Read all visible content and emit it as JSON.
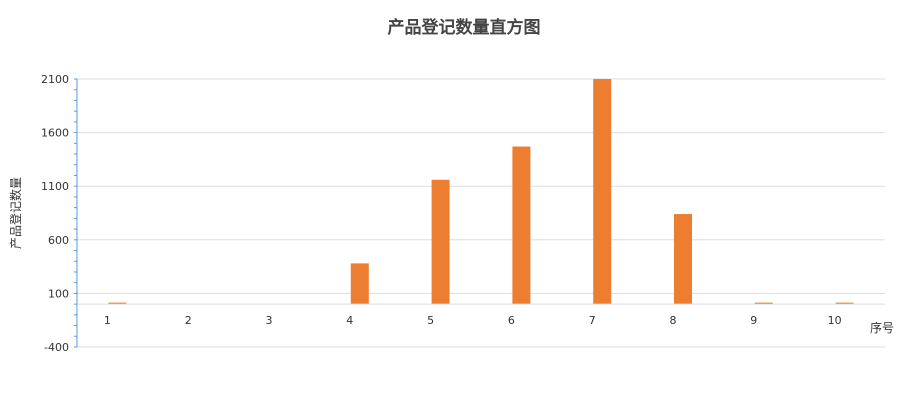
{
  "chart_data": {
    "type": "bar",
    "title": "产品登记数量直方图",
    "xlabel": "序号",
    "ylabel": "产品登记数量",
    "categories": [
      "1",
      "2",
      "3",
      "4",
      "5",
      "6",
      "7",
      "8",
      "9",
      "10"
    ],
    "values": [
      10,
      0,
      0,
      380,
      1160,
      1470,
      2100,
      840,
      10,
      10
    ],
    "ylim": [
      -400,
      2100
    ],
    "yticks": [
      "2100",
      "1600",
      "1100",
      "600",
      "100",
      "-400"
    ],
    "grid": true,
    "bar_color": "#ED7D31",
    "axis_color": "#5B9BD5",
    "grid_color": "#DDDDDD"
  }
}
